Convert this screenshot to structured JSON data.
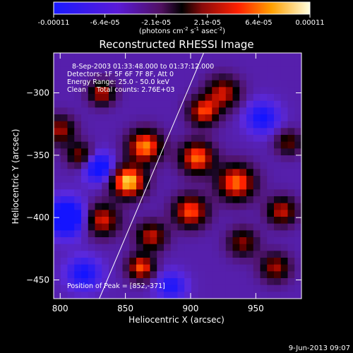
{
  "chart_data": {
    "type": "heatmap",
    "title": "Reconstructed RHESSI Image",
    "colorbar": {
      "ticks": [
        "-0.00011",
        "-6.4e-05",
        "-2.1e-05",
        "2.1e-05",
        "6.4e-05",
        "0.00011"
      ],
      "label_main": "(photons cm",
      "label_sup1": "-2",
      "label_mid1": " s",
      "label_sup2": "-1",
      "label_mid2": " asec",
      "label_sup3": "-2",
      "label_end": ")",
      "range": [
        -0.00011,
        0.00011
      ]
    },
    "xlabel": "Heliocentric X (arcsec)",
    "ylabel": "Heliocentric Y (arcsec)",
    "xlim": [
      795,
      985
    ],
    "ylim": [
      -465,
      -268
    ],
    "xticks": [
      {
        "value": 800,
        "label": "800"
      },
      {
        "value": 850,
        "label": "850"
      },
      {
        "value": 900,
        "label": "900"
      },
      {
        "value": 950,
        "label": "950"
      }
    ],
    "yticks": [
      {
        "value": -300,
        "label": "−300"
      },
      {
        "value": -350,
        "label": "−350"
      },
      {
        "value": -400,
        "label": "−400"
      },
      {
        "value": -450,
        "label": "−450"
      }
    ],
    "annotations": [
      "8-Sep-2003 01:33:48.000 to 01:37:12.000",
      "Detectors: 1F 5F 6F 7F 8F, Att 0",
      "Energy Range: 25.0 - 50.0 keV",
      "Clean     Total counts: 2.76E+03"
    ],
    "peak_text": "Position of Peak = [852,-371]",
    "peak": {
      "x": 852,
      "y": -371
    },
    "limb_line": [
      {
        "x": 830,
        "y": -465
      },
      {
        "x": 910,
        "y": -268
      }
    ],
    "blobs": [
      {
        "x": 852,
        "y": -371,
        "amp": 1.0,
        "s": 9
      },
      {
        "x": 865,
        "y": -343,
        "amp": 0.85,
        "s": 9
      },
      {
        "x": 905,
        "y": -352,
        "amp": 0.8,
        "s": 9
      },
      {
        "x": 935,
        "y": -372,
        "amp": 0.8,
        "s": 10
      },
      {
        "x": 900,
        "y": -395,
        "amp": 0.75,
        "s": 9
      },
      {
        "x": 832,
        "y": -402,
        "amp": 0.65,
        "s": 9
      },
      {
        "x": 870,
        "y": -415,
        "amp": 0.6,
        "s": 8
      },
      {
        "x": 940,
        "y": -420,
        "amp": 0.5,
        "s": 8
      },
      {
        "x": 862,
        "y": -440,
        "amp": 0.75,
        "s": 7
      },
      {
        "x": 910,
        "y": -315,
        "amp": 0.7,
        "s": 8
      },
      {
        "x": 925,
        "y": -300,
        "amp": 0.6,
        "s": 9
      },
      {
        "x": 970,
        "y": -395,
        "amp": 0.6,
        "s": 8
      },
      {
        "x": 965,
        "y": -440,
        "amp": 0.55,
        "s": 8
      },
      {
        "x": 800,
        "y": -330,
        "amp": 0.55,
        "s": 8
      },
      {
        "x": 832,
        "y": -300,
        "amp": 0.6,
        "s": 7
      },
      {
        "x": 815,
        "y": -350,
        "amp": 0.5,
        "s": 7
      },
      {
        "x": 805,
        "y": -400,
        "amp": -0.75,
        "s": 10
      },
      {
        "x": 830,
        "y": -360,
        "amp": -0.6,
        "s": 8
      },
      {
        "x": 955,
        "y": -320,
        "amp": -0.45,
        "s": 9
      },
      {
        "x": 818,
        "y": -445,
        "amp": -0.45,
        "s": 9
      },
      {
        "x": 885,
        "y": -455,
        "amp": -0.4,
        "s": 8
      },
      {
        "x": 975,
        "y": -340,
        "amp": 0.45,
        "s": 7
      }
    ]
  },
  "footer_date": "9-Jun-2013 09:07"
}
